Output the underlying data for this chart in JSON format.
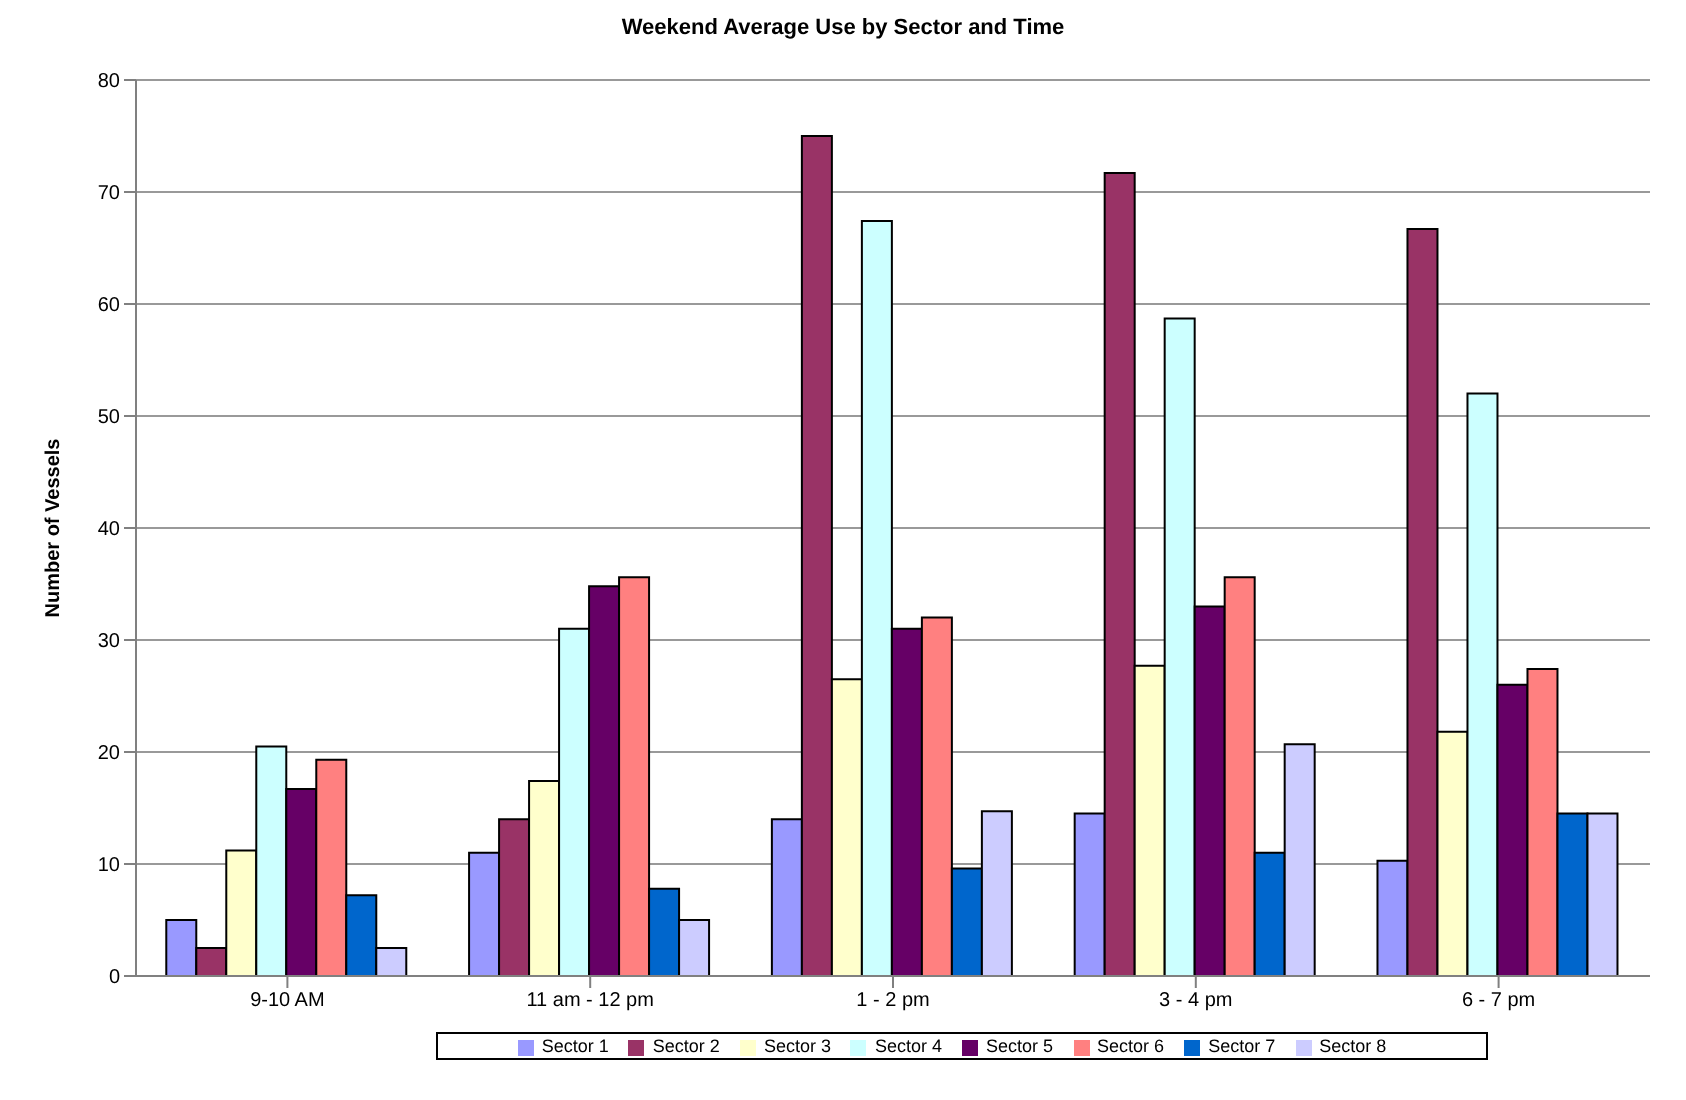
{
  "chart_data": {
    "type": "bar",
    "title": "Weekend Average Use by Sector and Time",
    "ylabel": "Number of Vessels",
    "categories": [
      "9-10 AM",
      "11 am - 12 pm",
      "1 - 2 pm",
      "3 - 4 pm",
      "6 - 7 pm"
    ],
    "series": [
      {
        "name": "Sector 1",
        "color": "#9999ff",
        "values": [
          5,
          11,
          14,
          14.5,
          10.3
        ]
      },
      {
        "name": "Sector 2",
        "color": "#993366",
        "values": [
          2.5,
          14,
          75,
          71.7,
          66.7
        ]
      },
      {
        "name": "Sector 3",
        "color": "#ffffcc",
        "values": [
          11.2,
          17.4,
          26.5,
          27.7,
          21.8
        ]
      },
      {
        "name": "Sector 4",
        "color": "#ccffff",
        "values": [
          20.5,
          31,
          67.4,
          58.7,
          52
        ]
      },
      {
        "name": "Sector 5",
        "color": "#660066",
        "values": [
          16.7,
          34.8,
          31,
          33,
          26
        ]
      },
      {
        "name": "Sector 6",
        "color": "#ff8080",
        "values": [
          19.3,
          35.6,
          32,
          35.6,
          27.4
        ]
      },
      {
        "name": "Sector 7",
        "color": "#0066cc",
        "values": [
          7.2,
          7.8,
          9.6,
          11,
          14.5
        ]
      },
      {
        "name": "Sector 8",
        "color": "#ccccff",
        "values": [
          2.5,
          5,
          14.7,
          20.7,
          14.5
        ]
      }
    ],
    "ylim": [
      0,
      80
    ],
    "yticks": [
      0,
      10,
      20,
      30,
      40,
      50,
      60,
      70,
      80
    ],
    "grid": "y",
    "legend": "bottom"
  }
}
